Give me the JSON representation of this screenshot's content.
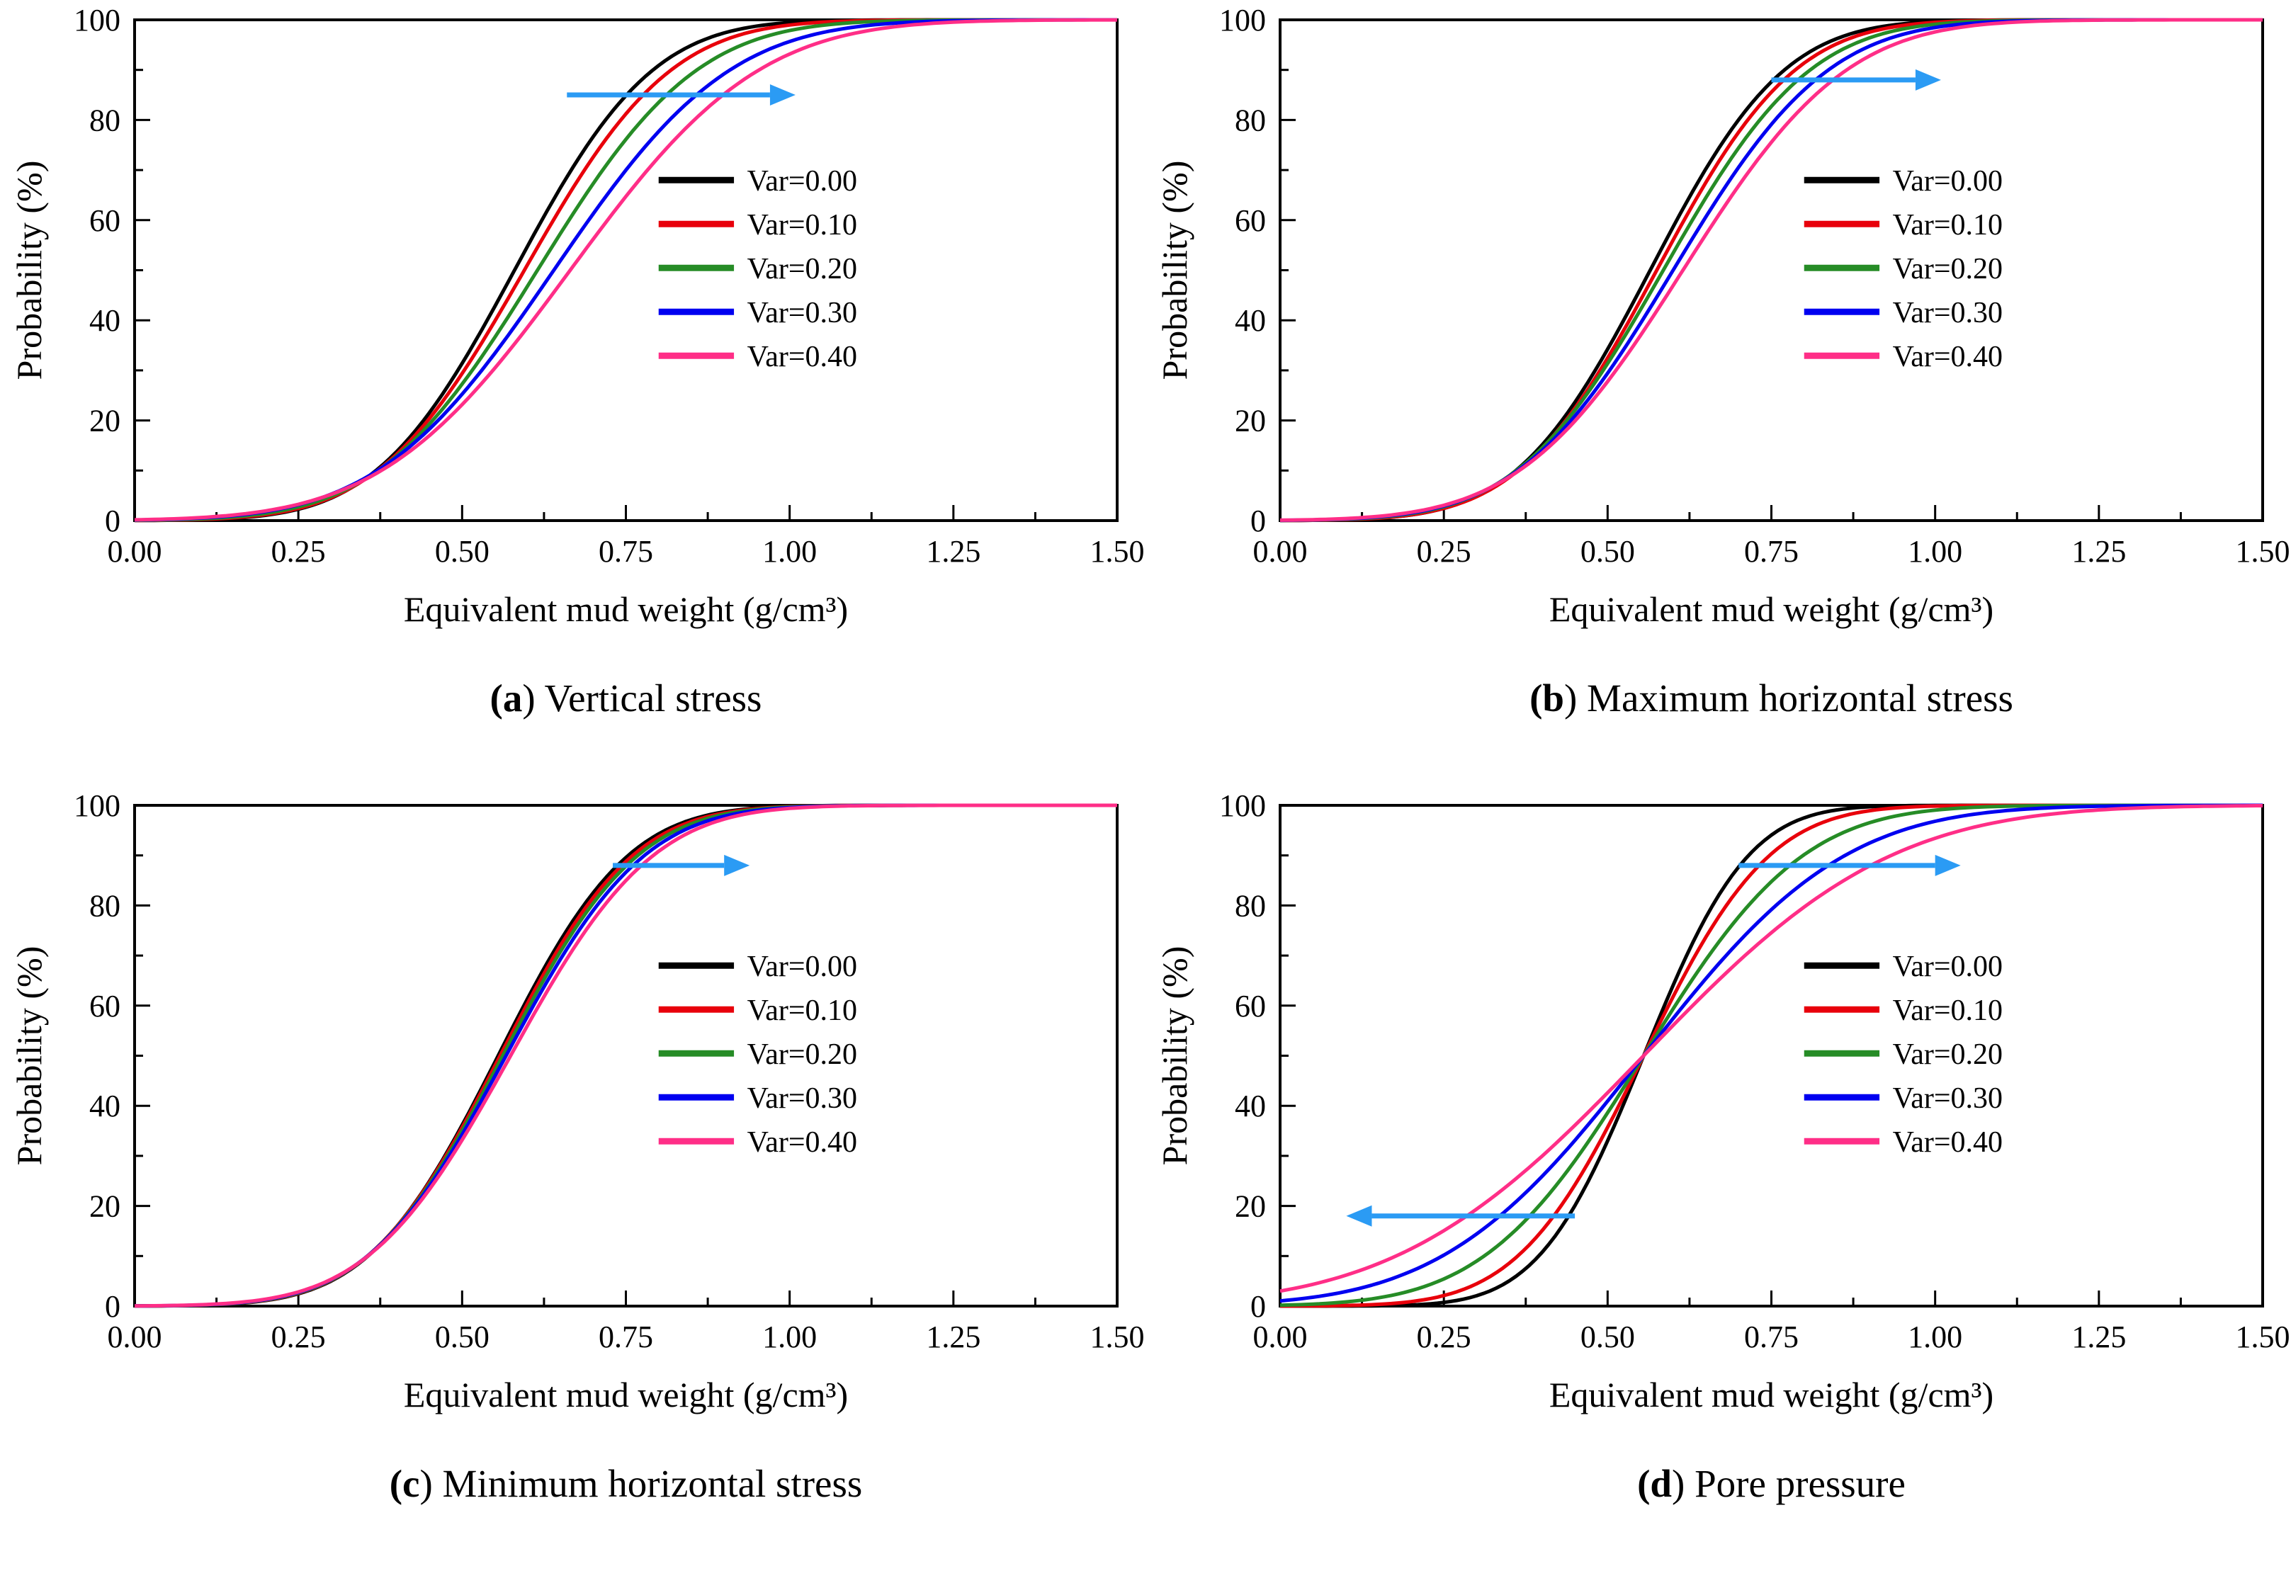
{
  "figure": {
    "panels": [
      {
        "pre": "(",
        "letter": "a",
        "rest": ") Vertical stress"
      },
      {
        "pre": "(",
        "letter": "b",
        "rest": ") Maximum horizontal stress"
      },
      {
        "pre": "(",
        "letter": "c",
        "rest": ") Minimum horizontal stress"
      },
      {
        "pre": "(",
        "letter": "d",
        "rest": ") Pore pressure"
      }
    ]
  },
  "style": {
    "arrow_color": "#2b9bf4",
    "axis_color": "#000000",
    "series_colors": [
      "#000000",
      "#e8000b",
      "#268c26",
      "#0000f0",
      "#ff2e87"
    ]
  },
  "chart_data": [
    {
      "type": "line",
      "subtype": "cumulative-distribution",
      "panel": "a",
      "title": "Vertical stress",
      "xlabel": "Equivalent mud weight (g/cm³)",
      "ylabel": "Probability (%)",
      "xlim": [
        0,
        1.5
      ],
      "ylim": [
        0,
        100
      ],
      "xticks": [
        "0.00",
        "0.25",
        "0.50",
        "0.75",
        "1.00",
        "1.25",
        "1.50"
      ],
      "yticks": [
        0,
        20,
        40,
        60,
        80,
        100
      ],
      "grid": false,
      "legend_position": "inside-right-center",
      "legend_top_pct": 68,
      "series": [
        {
          "name": "Var=0.00",
          "color": "#000000",
          "distribution": "normal-cdf",
          "mean": 0.58,
          "sd": 0.165,
          "sample_x": [
            0,
            0.25,
            0.5,
            0.75,
            1.0,
            1.25,
            1.5
          ],
          "sample_y": [
            0,
            2.3,
            31,
            85,
            99.5,
            100,
            100
          ]
        },
        {
          "name": "Var=0.10",
          "color": "#e8000b",
          "distribution": "normal-cdf",
          "mean": 0.595,
          "sd": 0.175,
          "sample_x": [
            0,
            0.25,
            0.5,
            0.75,
            1.0,
            1.25,
            1.5
          ],
          "sample_y": [
            0,
            2.4,
            29,
            81,
            99,
            100,
            100
          ]
        },
        {
          "name": "Var=0.20",
          "color": "#268c26",
          "distribution": "normal-cdf",
          "mean": 0.615,
          "sd": 0.19,
          "sample_x": [
            0,
            0.25,
            0.5,
            0.75,
            1.0,
            1.25,
            1.5
          ],
          "sample_y": [
            0.1,
            2.7,
            27,
            76,
            98,
            100,
            100
          ]
        },
        {
          "name": "Var=0.30",
          "color": "#0000f0",
          "distribution": "normal-cdf",
          "mean": 0.64,
          "sd": 0.21,
          "sample_x": [
            0,
            0.25,
            0.5,
            0.75,
            1.0,
            1.25,
            1.5
          ],
          "sample_y": [
            0.1,
            3.2,
            25,
            70,
            96,
            99.8,
            100
          ]
        },
        {
          "name": "Var=0.40",
          "color": "#ff2e87",
          "distribution": "normal-cdf",
          "mean": 0.665,
          "sd": 0.225,
          "sample_x": [
            0,
            0.25,
            0.5,
            0.75,
            1.0,
            1.25,
            1.5
          ],
          "sample_y": [
            0.2,
            3.3,
            23,
            65,
            93,
            99.5,
            100
          ]
        }
      ],
      "arrows": [
        {
          "x_from": 0.66,
          "x_to": 0.97,
          "y": 85,
          "direction": "right"
        }
      ]
    },
    {
      "type": "line",
      "subtype": "cumulative-distribution",
      "panel": "b",
      "title": "Maximum horizontal stress",
      "xlabel": "Equivalent mud weight (g/cm³)",
      "ylabel": "Probability (%)",
      "xlim": [
        0,
        1.5
      ],
      "ylim": [
        0,
        100
      ],
      "xticks": [
        "0.00",
        "0.25",
        "0.50",
        "0.75",
        "1.00",
        "1.25",
        "1.50"
      ],
      "yticks": [
        0,
        20,
        40,
        60,
        80,
        100
      ],
      "grid": false,
      "legend_position": "inside-right-center",
      "legend_top_pct": 68,
      "series": [
        {
          "name": "Var=0.00",
          "color": "#000000",
          "distribution": "normal-cdf",
          "mean": 0.565,
          "sd": 0.16,
          "sample_x": [
            0,
            0.25,
            0.5,
            0.75,
            1.0,
            1.25,
            1.5
          ],
          "sample_y": [
            0,
            2.4,
            34,
            88,
            99.7,
            100,
            100
          ]
        },
        {
          "name": "Var=0.10",
          "color": "#e8000b",
          "distribution": "normal-cdf",
          "mean": 0.575,
          "sd": 0.165,
          "sample_x": [
            0,
            0.25,
            0.5,
            0.75,
            1.0,
            1.25,
            1.5
          ],
          "sample_y": [
            0,
            2.4,
            32,
            86,
            99.5,
            100,
            100
          ]
        },
        {
          "name": "Var=0.20",
          "color": "#268c26",
          "distribution": "normal-cdf",
          "mean": 0.585,
          "sd": 0.175,
          "sample_x": [
            0,
            0.25,
            0.5,
            0.75,
            1.0,
            1.25,
            1.5
          ],
          "sample_y": [
            0,
            2.8,
            31,
            83,
            99,
            100,
            100
          ]
        },
        {
          "name": "Var=0.30",
          "color": "#0000f0",
          "distribution": "normal-cdf",
          "mean": 0.6,
          "sd": 0.185,
          "sample_x": [
            0,
            0.25,
            0.5,
            0.75,
            1.0,
            1.25,
            1.5
          ],
          "sample_y": [
            0.1,
            2.9,
            29,
            79,
            98.5,
            100,
            100
          ]
        },
        {
          "name": "Var=0.40",
          "color": "#ff2e87",
          "distribution": "normal-cdf",
          "mean": 0.615,
          "sd": 0.195,
          "sample_x": [
            0,
            0.25,
            0.5,
            0.75,
            1.0,
            1.25,
            1.5
          ],
          "sample_y": [
            0.1,
            3.1,
            28,
            76,
            97.6,
            99.9,
            100
          ]
        }
      ],
      "arrows": [
        {
          "x_from": 0.75,
          "x_to": 0.97,
          "y": 88,
          "direction": "right"
        }
      ]
    },
    {
      "type": "line",
      "subtype": "cumulative-distribution",
      "panel": "c",
      "title": "Minimum horizontal stress",
      "xlabel": "Equivalent mud weight (g/cm³)",
      "ylabel": "Probability (%)",
      "xlim": [
        0,
        1.5
      ],
      "ylim": [
        0,
        100
      ],
      "xticks": [
        "0.00",
        "0.25",
        "0.50",
        "0.75",
        "1.00",
        "1.25",
        "1.50"
      ],
      "yticks": [
        0,
        20,
        40,
        60,
        80,
        100
      ],
      "grid": false,
      "legend_position": "inside-right-center",
      "legend_top_pct": 68,
      "series": [
        {
          "name": "Var=0.00",
          "color": "#000000",
          "distribution": "normal-cdf",
          "mean": 0.555,
          "sd": 0.155,
          "sample_x": [
            0,
            0.25,
            0.5,
            0.75,
            1.0,
            1.25,
            1.5
          ],
          "sample_y": [
            0,
            2.5,
            36,
            90,
            99.8,
            100,
            100
          ]
        },
        {
          "name": "Var=0.10",
          "color": "#e8000b",
          "distribution": "normal-cdf",
          "mean": 0.558,
          "sd": 0.158,
          "sample_x": [
            0,
            0.25,
            0.5,
            0.75,
            1.0,
            1.25,
            1.5
          ],
          "sample_y": [
            0,
            2.6,
            36,
            89,
            99.7,
            100,
            100
          ]
        },
        {
          "name": "Var=0.20",
          "color": "#268c26",
          "distribution": "normal-cdf",
          "mean": 0.562,
          "sd": 0.161,
          "sample_x": [
            0,
            0.25,
            0.5,
            0.75,
            1.0,
            1.25,
            1.5
          ],
          "sample_y": [
            0,
            2.6,
            35,
            88,
            99.7,
            100,
            100
          ]
        },
        {
          "name": "Var=0.30",
          "color": "#0000f0",
          "distribution": "normal-cdf",
          "mean": 0.567,
          "sd": 0.165,
          "sample_x": [
            0,
            0.25,
            0.5,
            0.75,
            1.0,
            1.25,
            1.5
          ],
          "sample_y": [
            0,
            2.7,
            34,
            87,
            99.6,
            100,
            100
          ]
        },
        {
          "name": "Var=0.40",
          "color": "#ff2e87",
          "distribution": "normal-cdf",
          "mean": 0.574,
          "sd": 0.17,
          "sample_x": [
            0,
            0.25,
            0.5,
            0.75,
            1.0,
            1.25,
            1.5
          ],
          "sample_y": [
            0,
            2.8,
            33,
            85,
            99.4,
            100,
            100
          ]
        }
      ],
      "arrows": [
        {
          "x_from": 0.73,
          "x_to": 0.9,
          "y": 88,
          "direction": "right"
        }
      ]
    },
    {
      "type": "line",
      "subtype": "cumulative-distribution",
      "panel": "d",
      "title": "Pore pressure",
      "xlabel": "Equivalent mud weight (g/cm³)",
      "ylabel": "Probability (%)",
      "xlim": [
        0,
        1.5
      ],
      "ylim": [
        0,
        100
      ],
      "xticks": [
        "0.00",
        "0.25",
        "0.50",
        "0.75",
        "1.00",
        "1.25",
        "1.50"
      ],
      "yticks": [
        0,
        20,
        40,
        60,
        80,
        100
      ],
      "grid": false,
      "legend_position": "inside-right-center",
      "legend_top_pct": 68,
      "series": [
        {
          "name": "Var=0.00",
          "color": "#000000",
          "distribution": "normal-cdf",
          "mean": 0.555,
          "sd": 0.125,
          "sample_x": [
            0,
            0.25,
            0.5,
            0.75,
            1.0,
            1.25,
            1.5
          ],
          "sample_y": [
            0,
            0.7,
            33,
            94,
            100,
            100,
            100
          ]
        },
        {
          "name": "Var=0.10",
          "color": "#e8000b",
          "distribution": "normal-cdf",
          "mean": 0.555,
          "sd": 0.15,
          "sample_x": [
            0,
            0.25,
            0.5,
            0.75,
            1.0,
            1.25,
            1.5
          ],
          "sample_y": [
            0,
            2.1,
            36,
            90,
            99.9,
            100,
            100
          ]
        },
        {
          "name": "Var=0.20",
          "color": "#268c26",
          "distribution": "normal-cdf",
          "mean": 0.555,
          "sd": 0.19,
          "sample_x": [
            0,
            0.25,
            0.5,
            0.75,
            1.0,
            1.25,
            1.5
          ],
          "sample_y": [
            0.2,
            5.4,
            39,
            85,
            99,
            100,
            100
          ]
        },
        {
          "name": "Var=0.30",
          "color": "#0000f0",
          "distribution": "normal-cdf",
          "mean": 0.555,
          "sd": 0.24,
          "sample_x": [
            0,
            0.25,
            0.5,
            0.75,
            1.0,
            1.25,
            1.5
          ],
          "sample_y": [
            1,
            10,
            41,
            79,
            97,
            99.8,
            100
          ]
        },
        {
          "name": "Var=0.40",
          "color": "#ff2e87",
          "distribution": "normal-cdf",
          "mean": 0.555,
          "sd": 0.295,
          "sample_x": [
            0,
            0.25,
            0.5,
            0.75,
            1.0,
            1.25,
            1.5
          ],
          "sample_y": [
            3,
            15,
            43,
            75,
            93,
            99.1,
            99.9
          ]
        }
      ],
      "arrows": [
        {
          "x_from": 0.7,
          "x_to": 1.0,
          "y": 88,
          "direction": "right"
        },
        {
          "x_from": 0.45,
          "x_to": 0.14,
          "y": 18,
          "direction": "left"
        }
      ]
    }
  ]
}
